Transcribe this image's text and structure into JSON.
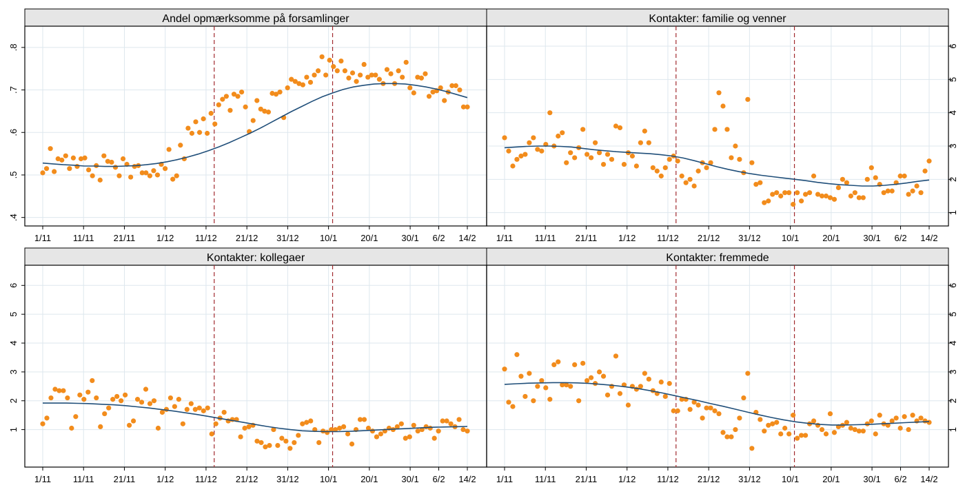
{
  "colors": {
    "point": "#F28C1C",
    "fit": "#1F4E79",
    "vline": "#A0282D",
    "grid": "#DDE7EE",
    "strip": "#E6E6E6",
    "frame": "#000000"
  },
  "x_ticks": [
    "1/11",
    "11/11",
    "21/11",
    "1/12",
    "11/12",
    "21/12",
    "31/12",
    "10/1",
    "20/1",
    "30/1",
    "6/2",
    "14/2"
  ],
  "chart_data": [
    {
      "type": "scatter",
      "title": "Andel opmærksomme på forsamlinger",
      "y_ticks": [
        ".4",
        ".5",
        ".6",
        ".7",
        ".8"
      ],
      "ylim": [
        0.38,
        0.85
      ],
      "vlines": [
        42,
        71
      ],
      "series": [
        {
          "kind": "points",
          "y": [
            0.505,
            0.515,
            0.562,
            0.508,
            0.538,
            0.535,
            0.545,
            0.515,
            0.54,
            0.52,
            0.538,
            0.54,
            0.512,
            0.498,
            0.522,
            0.488,
            0.545,
            0.532,
            0.53,
            0.518,
            0.498,
            0.538,
            0.525,
            0.495,
            0.52,
            0.522,
            0.505,
            0.505,
            0.498,
            0.51,
            0.5,
            0.525,
            0.515,
            0.56,
            0.49,
            0.498,
            0.57,
            0.538,
            0.61,
            0.598,
            0.625,
            0.6,
            0.632,
            0.598,
            0.645,
            0.62,
            0.665,
            0.678,
            0.685,
            0.652,
            0.69,
            0.685,
            0.695,
            0.66,
            0.602,
            0.628,
            0.675,
            0.655,
            0.65,
            0.648,
            0.692,
            0.69,
            0.695,
            0.635,
            0.705,
            0.725,
            0.72,
            0.715,
            0.712,
            0.73,
            0.718,
            0.735,
            0.745,
            0.778,
            0.735,
            0.77,
            0.755,
            0.745,
            0.768,
            0.745,
            0.728,
            0.74,
            0.72,
            0.735,
            0.76,
            0.73,
            0.735,
            0.735,
            0.725,
            0.715,
            0.748,
            0.738,
            0.715,
            0.745,
            0.73,
            0.765,
            0.705,
            0.693,
            0.73,
            0.728,
            0.738,
            0.685,
            0.695,
            0.698,
            0.705,
            0.675,
            0.695,
            0.71,
            0.71,
            0.7,
            0.66,
            0.66
          ]
        },
        {
          "kind": "fit",
          "y": [
            0.528,
            0.526,
            0.524,
            0.523,
            0.521,
            0.521,
            0.52,
            0.52,
            0.521,
            0.522,
            0.524,
            0.527,
            0.531,
            0.536,
            0.542,
            0.549,
            0.557,
            0.566,
            0.576,
            0.587,
            0.598,
            0.61,
            0.623,
            0.636,
            0.649,
            0.661,
            0.673,
            0.684,
            0.693,
            0.701,
            0.707,
            0.711,
            0.714,
            0.715,
            0.715,
            0.714,
            0.711,
            0.707,
            0.702,
            0.696,
            0.689,
            0.682
          ]
        }
      ]
    },
    {
      "type": "scatter",
      "title": "Kontakter: familie og venner",
      "y_ticks": [
        "1",
        "2",
        "3",
        "4",
        "5",
        "6"
      ],
      "ylim": [
        0.6,
        6.6
      ],
      "vlines": [
        42,
        71
      ],
      "series": [
        {
          "kind": "points",
          "y": [
            3.25,
            2.85,
            2.4,
            2.6,
            2.7,
            2.75,
            3.1,
            3.25,
            2.9,
            2.85,
            3.05,
            4.0,
            3.0,
            3.3,
            3.4,
            2.5,
            2.8,
            2.65,
            2.95,
            3.5,
            2.75,
            2.65,
            3.1,
            2.8,
            2.45,
            2.75,
            2.6,
            3.6,
            3.55,
            2.45,
            2.8,
            2.7,
            2.4,
            3.1,
            3.45,
            3.1,
            2.35,
            2.25,
            2.1,
            2.35,
            2.6,
            2.7,
            2.55,
            2.1,
            1.9,
            2.0,
            1.8,
            2.25,
            2.5,
            2.35,
            2.5,
            3.5,
            4.6,
            4.2,
            3.5,
            2.65,
            3.0,
            2.6,
            2.2,
            4.4,
            2.5,
            1.85,
            1.9,
            1.3,
            1.35,
            1.55,
            1.6,
            1.5,
            1.6,
            1.6,
            1.25,
            1.6,
            1.35,
            1.55,
            1.6,
            2.1,
            1.55,
            1.5,
            1.5,
            1.45,
            1.4,
            1.75,
            2.0,
            1.9,
            1.5,
            1.6,
            1.45,
            1.45,
            2.0,
            2.35,
            2.05,
            1.85,
            1.6,
            1.65,
            1.65,
            1.9,
            2.1,
            2.1,
            1.55,
            1.65,
            1.8,
            1.6,
            2.25,
            2.55
          ]
        },
        {
          "kind": "fit",
          "y": [
            2.95,
            2.97,
            2.99,
            3.0,
            3.0,
            2.99,
            2.97,
            2.93,
            2.89,
            2.86,
            2.83,
            2.81,
            2.79,
            2.77,
            2.74,
            2.7,
            2.64,
            2.56,
            2.47,
            2.38,
            2.3,
            2.23,
            2.17,
            2.12,
            2.08,
            2.04,
            2.0,
            1.96,
            1.91,
            1.87,
            1.84,
            1.82,
            1.8,
            1.8,
            1.82,
            1.85,
            1.89,
            1.94,
            1.98
          ]
        }
      ]
    },
    {
      "type": "scatter",
      "title": "Kontakter: kollegaer",
      "y_ticks": [
        "1",
        "2",
        "3",
        "4",
        "5",
        "6"
      ],
      "ylim": [
        -0.3,
        6.7
      ],
      "vlines": [
        42,
        71
      ],
      "series": [
        {
          "kind": "points",
          "y": [
            1.2,
            1.4,
            2.1,
            2.4,
            2.35,
            2.35,
            2.1,
            1.05,
            1.45,
            2.2,
            2.05,
            2.3,
            2.7,
            2.1,
            1.1,
            1.55,
            1.75,
            2.05,
            2.15,
            2.0,
            2.2,
            1.15,
            1.3,
            2.05,
            1.95,
            2.4,
            1.9,
            2.0,
            1.05,
            1.6,
            1.7,
            2.1,
            1.8,
            2.05,
            1.2,
            1.7,
            1.9,
            1.7,
            1.75,
            1.65,
            1.75,
            0.85,
            1.2,
            1.4,
            1.6,
            1.3,
            1.35,
            1.35,
            0.75,
            1.05,
            1.1,
            1.15,
            0.6,
            0.55,
            0.4,
            0.45,
            1.0,
            0.45,
            0.7,
            0.6,
            0.35,
            0.55,
            0.8,
            1.2,
            1.25,
            1.3,
            1.0,
            0.55,
            0.95,
            0.9,
            1.0,
            1.0,
            1.05,
            1.1,
            0.85,
            0.5,
            1.0,
            1.35,
            1.35,
            1.05,
            0.95,
            0.75,
            0.85,
            0.95,
            1.05,
            1.0,
            1.1,
            1.2,
            0.7,
            0.75,
            1.15,
            0.95,
            1.0,
            1.1,
            1.05,
            0.7,
            0.95,
            1.3,
            1.3,
            1.2,
            1.1,
            1.35,
            1.0,
            0.95
          ]
        },
        {
          "kind": "fit",
          "y": [
            1.92,
            1.92,
            1.92,
            1.91,
            1.9,
            1.88,
            1.86,
            1.83,
            1.79,
            1.75,
            1.7,
            1.65,
            1.59,
            1.53,
            1.46,
            1.39,
            1.32,
            1.25,
            1.18,
            1.11,
            1.05,
            1.0,
            0.96,
            0.94,
            0.93,
            0.93,
            0.94,
            0.96,
            0.98,
            1.0,
            1.02,
            1.04,
            1.06,
            1.08,
            1.09,
            1.1,
            1.11
          ]
        }
      ]
    },
    {
      "type": "scatter",
      "title": "Kontakter: fremmede",
      "y_ticks": [
        "1",
        "2",
        "3",
        "4",
        "5",
        "6"
      ],
      "ylim": [
        -0.3,
        6.7
      ],
      "vlines": [
        42,
        71
      ],
      "series": [
        {
          "kind": "points",
          "y": [
            3.1,
            1.95,
            1.8,
            3.6,
            2.85,
            2.15,
            2.95,
            2.0,
            2.5,
            2.7,
            2.45,
            2.05,
            3.25,
            3.35,
            2.55,
            2.55,
            2.5,
            3.25,
            2.0,
            3.3,
            2.7,
            2.8,
            2.6,
            3.0,
            2.85,
            2.2,
            2.5,
            3.55,
            2.25,
            2.55,
            1.85,
            2.5,
            2.4,
            2.5,
            2.95,
            2.75,
            2.35,
            2.25,
            2.65,
            2.15,
            2.6,
            1.65,
            1.65,
            2.05,
            2.05,
            1.7,
            1.95,
            1.85,
            1.4,
            1.75,
            1.75,
            1.65,
            1.55,
            0.9,
            0.75,
            0.75,
            1.0,
            1.4,
            2.1,
            2.95,
            0.35,
            1.6,
            1.35,
            0.95,
            1.15,
            1.2,
            1.25,
            0.85,
            1.05,
            0.85,
            1.5,
            0.7,
            0.8,
            0.8,
            1.2,
            1.3,
            1.15,
            1.0,
            0.85,
            1.55,
            0.9,
            1.1,
            1.15,
            1.25,
            1.05,
            1.0,
            0.95,
            0.95,
            1.2,
            1.3,
            0.85,
            1.5,
            1.2,
            1.15,
            1.3,
            1.4,
            1.05,
            1.45,
            1.0,
            1.5,
            1.3,
            1.4,
            1.3,
            1.25
          ]
        },
        {
          "kind": "fit",
          "y": [
            2.57,
            2.59,
            2.61,
            2.62,
            2.63,
            2.63,
            2.62,
            2.6,
            2.57,
            2.53,
            2.48,
            2.42,
            2.35,
            2.27,
            2.18,
            2.09,
            2.0,
            1.9,
            1.81,
            1.71,
            1.61,
            1.51,
            1.42,
            1.34,
            1.27,
            1.22,
            1.18,
            1.16,
            1.16,
            1.17,
            1.18,
            1.2,
            1.22,
            1.24,
            1.26,
            1.28
          ]
        }
      ]
    }
  ]
}
